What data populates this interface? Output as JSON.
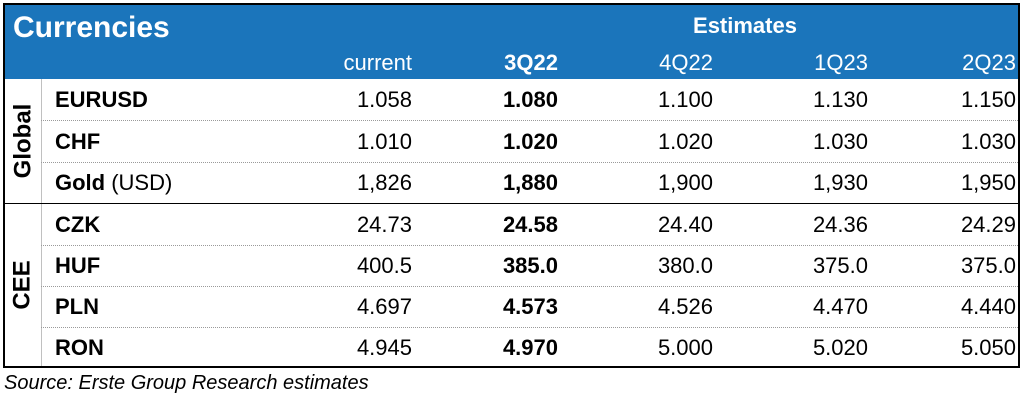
{
  "header": {
    "title": "Currencies",
    "estimates_label": "Estimates",
    "columns": [
      "current",
      "3Q22",
      "4Q22",
      "1Q23",
      "2Q23"
    ]
  },
  "groups": {
    "global": "Global",
    "cee": "CEE"
  },
  "rows": [
    {
      "name": "EURUSD",
      "unit": "",
      "values": [
        "1.058",
        "1.080",
        "1.100",
        "1.130",
        "1.150"
      ]
    },
    {
      "name": "CHF",
      "unit": "",
      "values": [
        "1.010",
        "1.020",
        "1.020",
        "1.030",
        "1.030"
      ]
    },
    {
      "name": "Gold",
      "unit": " (USD)",
      "values": [
        "1,826",
        "1,880",
        "1,900",
        "1,930",
        "1,950"
      ]
    },
    {
      "name": "CZK",
      "unit": "",
      "values": [
        "24.73",
        "24.58",
        "24.40",
        "24.36",
        "24.29"
      ]
    },
    {
      "name": "HUF",
      "unit": "",
      "values": [
        "400.5",
        "385.0",
        "380.0",
        "375.0",
        "375.0"
      ]
    },
    {
      "name": "PLN",
      "unit": "",
      "values": [
        "4.697",
        "4.573",
        "4.526",
        "4.470",
        "4.440"
      ]
    },
    {
      "name": "RON",
      "unit": "",
      "values": [
        "4.945",
        "4.970",
        "5.000",
        "5.020",
        "5.050"
      ]
    }
  ],
  "source": "Source: Erste Group Research estimates"
}
